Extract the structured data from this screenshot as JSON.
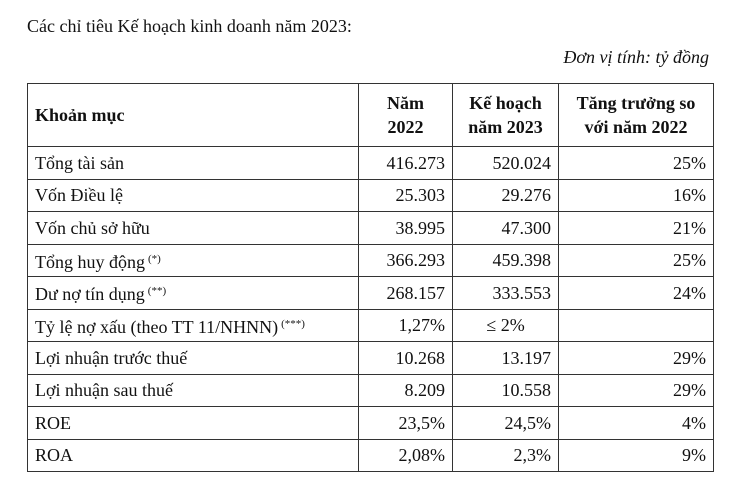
{
  "intro": "Các chỉ tiêu Kế hoạch kinh doanh năm 2023:",
  "unit": "Đơn vị tính: tỷ đồng",
  "table": {
    "header": [
      {
        "line1": "Khoản mục"
      },
      {
        "line1": "Năm",
        "line2": "2022"
      },
      {
        "line1": "Kế hoạch",
        "line2": "năm 2023"
      },
      {
        "line1": "Tăng trưởng so",
        "line2": "với năm 2022"
      }
    ],
    "rows": [
      {
        "item": "Tổng tài sản",
        "y2022": "416.273",
        "plan2023": "520.024",
        "growth": "25%"
      },
      {
        "item": "Vốn Điều lệ",
        "y2022": "25.303",
        "plan2023": "29.276",
        "growth": "16%"
      },
      {
        "item": "Vốn chủ sở hữu",
        "y2022": "38.995",
        "plan2023": "47.300",
        "growth": "21%"
      },
      {
        "item": "Tổng huy động",
        "note": "(*)",
        "y2022": "366.293",
        "plan2023": "459.398",
        "growth": "25%"
      },
      {
        "item": "Dư nợ tín dụng",
        "note": "(**)",
        "y2022": "268.157",
        "plan2023": "333.553",
        "growth": "24%"
      },
      {
        "item": "Tỷ lệ nợ xấu (theo TT 11/NHNN)",
        "note": "(***)",
        "y2022": "1,27%",
        "plan2023": "≤ 2%"
      },
      {
        "item": "Lợi nhuận trước thuế",
        "y2022": "10.268",
        "plan2023": "13.197",
        "growth": "29%"
      },
      {
        "item": "Lợi nhuận sau thuế",
        "y2022": "8.209",
        "plan2023": "10.558",
        "growth": "29%"
      },
      {
        "item": "ROE",
        "y2022": "23,5%",
        "plan2023": "24,5%",
        "growth": "4%"
      },
      {
        "item": "ROA",
        "y2022": "2,08%",
        "plan2023": "2,3%",
        "growth": "9%"
      }
    ]
  }
}
